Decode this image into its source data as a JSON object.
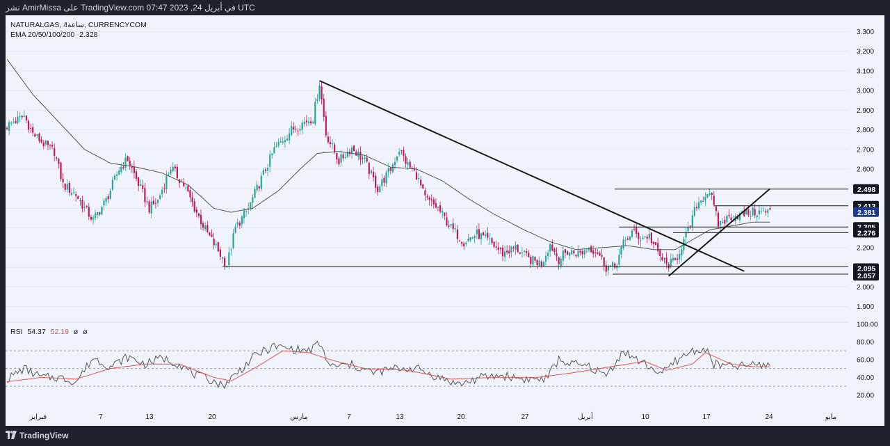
{
  "header": {
    "text": "نشر AmirMissa على TradingView.com 07:47 2023 ,24 في أبريل UTC"
  },
  "footer": {
    "brand": "TradingView",
    "icon": "tradingview-logo-icon"
  },
  "colors": {
    "background": "#f0f3fa",
    "up": "#26a69a",
    "down": "#c2185b",
    "ema": "#555555",
    "trendline": "#1a1a1a",
    "rsi": "#555555",
    "rsi_ma": "#e05555",
    "badge": "#131722",
    "badge_last": "#1e3a8a"
  },
  "chart_data": [
    {
      "type": "candlestick",
      "title": "NATURALGAS, 4ساعة, CURRENCYCOM",
      "indicator_label": "EMA 20/50/100/200",
      "indicator_value": "2.328",
      "ylim": [
        1.87,
        3.33
      ],
      "y_ticks": [
        "3.300",
        "3.200",
        "3.100",
        "3.000",
        "2.900",
        "2.800",
        "2.700",
        "2.600",
        "2.500",
        "2.400",
        "2.300",
        "2.200",
        "2.100",
        "2.000",
        "1.900"
      ],
      "x_ticks": [
        "فبراير",
        "7",
        "13",
        "20",
        "مارس",
        "7",
        "13",
        "20",
        "27",
        "أبريل",
        "10",
        "17",
        "24",
        "مايو"
      ],
      "price_badges": [
        {
          "label": "2.498",
          "value": 2.498
        },
        {
          "label": "2.413",
          "value": 2.413
        },
        {
          "label": "2.381",
          "value": 2.381,
          "last": true
        },
        {
          "label": "2.305",
          "value": 2.305
        },
        {
          "label": "2.276",
          "value": 2.276
        },
        {
          "label": "2.095",
          "value": 2.095
        },
        {
          "label": "2.057",
          "value": 2.057
        }
      ],
      "anchors": [
        [
          0,
          2.82
        ],
        [
          8,
          2.87
        ],
        [
          12,
          2.78
        ],
        [
          18,
          2.72
        ],
        [
          22,
          2.69
        ],
        [
          26,
          2.52
        ],
        [
          32,
          2.47
        ],
        [
          36,
          2.4
        ],
        [
          40,
          2.34
        ],
        [
          46,
          2.44
        ],
        [
          52,
          2.6
        ],
        [
          56,
          2.65
        ],
        [
          60,
          2.55
        ],
        [
          66,
          2.4
        ],
        [
          70,
          2.44
        ],
        [
          76,
          2.61
        ],
        [
          82,
          2.52
        ],
        [
          88,
          2.38
        ],
        [
          92,
          2.29
        ],
        [
          96,
          2.22
        ],
        [
          102,
          2.11
        ],
        [
          106,
          2.3
        ],
        [
          112,
          2.4
        ],
        [
          118,
          2.55
        ],
        [
          124,
          2.7
        ],
        [
          132,
          2.8
        ],
        [
          138,
          2.84
        ],
        [
          142,
          2.86
        ],
        [
          145,
          3.04
        ],
        [
          148,
          2.78
        ],
        [
          154,
          2.64
        ],
        [
          160,
          2.71
        ],
        [
          166,
          2.64
        ],
        [
          172,
          2.5
        ],
        [
          178,
          2.6
        ],
        [
          182,
          2.7
        ],
        [
          186,
          2.62
        ],
        [
          190,
          2.57
        ],
        [
          194,
          2.45
        ],
        [
          200,
          2.4
        ],
        [
          206,
          2.3
        ],
        [
          212,
          2.23
        ],
        [
          218,
          2.27
        ],
        [
          224,
          2.23
        ],
        [
          230,
          2.17
        ],
        [
          236,
          2.2
        ],
        [
          242,
          2.14
        ],
        [
          248,
          2.12
        ],
        [
          252,
          2.22
        ],
        [
          256,
          2.14
        ],
        [
          260,
          2.18
        ],
        [
          266,
          2.17
        ],
        [
          270,
          2.2
        ],
        [
          274,
          2.18
        ],
        [
          278,
          2.1
        ],
        [
          282,
          2.1
        ],
        [
          286,
          2.22
        ],
        [
          290,
          2.28
        ],
        [
          294,
          2.25
        ],
        [
          298,
          2.26
        ],
        [
          302,
          2.17
        ],
        [
          306,
          2.11
        ],
        [
          310,
          2.13
        ],
        [
          313,
          2.21
        ],
        [
          316,
          2.28
        ],
        [
          320,
          2.42
        ],
        [
          326,
          2.49
        ],
        [
          330,
          2.32
        ],
        [
          336,
          2.36
        ],
        [
          342,
          2.37
        ],
        [
          346,
          2.38
        ]
      ],
      "ema": [
        [
          0,
          3.16
        ],
        [
          12,
          2.98
        ],
        [
          24,
          2.84
        ],
        [
          36,
          2.7
        ],
        [
          48,
          2.63
        ],
        [
          60,
          2.61
        ],
        [
          72,
          2.58
        ],
        [
          84,
          2.52
        ],
        [
          96,
          2.4
        ],
        [
          104,
          2.38
        ],
        [
          114,
          2.4
        ],
        [
          126,
          2.49
        ],
        [
          136,
          2.6
        ],
        [
          144,
          2.68
        ],
        [
          154,
          2.69
        ],
        [
          166,
          2.67
        ],
        [
          178,
          2.61
        ],
        [
          190,
          2.6
        ],
        [
          202,
          2.54
        ],
        [
          214,
          2.45
        ],
        [
          226,
          2.37
        ],
        [
          240,
          2.29
        ],
        [
          252,
          2.23
        ],
        [
          264,
          2.19
        ],
        [
          276,
          2.2
        ],
        [
          288,
          2.21
        ],
        [
          300,
          2.19
        ],
        [
          310,
          2.19
        ],
        [
          318,
          2.24
        ],
        [
          326,
          2.29
        ],
        [
          336,
          2.31
        ],
        [
          346,
          2.33
        ]
      ],
      "trendlines": [
        {
          "from": [
            145,
            3.05
          ],
          "to": [
            342,
            2.08
          ]
        },
        {
          "from": [
            307,
            2.055
          ],
          "to": [
            354,
            2.5
          ]
        }
      ],
      "hlines": [
        {
          "value": 2.105,
          "from": 100,
          "to": 357
        },
        {
          "value": 2.065,
          "from": 281,
          "to": 357
        },
        {
          "value": 2.498,
          "from": 282,
          "to": 357
        },
        {
          "value": 2.413,
          "from": 328,
          "to": 357
        },
        {
          "value": 2.305,
          "from": 284,
          "to": 357
        },
        {
          "value": 2.276,
          "from": 309,
          "to": 357
        }
      ]
    },
    {
      "type": "line",
      "title": "RSI",
      "value": "54.37",
      "ma_value": "52.19",
      "extra": [
        "ø",
        "ø"
      ],
      "ylim": [
        12,
        100
      ],
      "y_ticks": [
        "100.00",
        "80.00",
        "60.00",
        "40.00",
        "20.00"
      ],
      "bands": [
        70,
        50,
        30
      ],
      "anchors": [
        [
          0,
          38
        ],
        [
          8,
          50
        ],
        [
          16,
          40
        ],
        [
          24,
          40
        ],
        [
          32,
          35
        ],
        [
          40,
          62
        ],
        [
          48,
          52
        ],
        [
          56,
          63
        ],
        [
          64,
          55
        ],
        [
          72,
          62
        ],
        [
          80,
          55
        ],
        [
          88,
          42
        ],
        [
          96,
          36
        ],
        [
          100,
          30
        ],
        [
          108,
          48
        ],
        [
          116,
          66
        ],
        [
          124,
          75
        ],
        [
          132,
          72
        ],
        [
          140,
          70
        ],
        [
          145,
          78
        ],
        [
          150,
          52
        ],
        [
          160,
          54
        ],
        [
          170,
          45
        ],
        [
          180,
          50
        ],
        [
          190,
          50
        ],
        [
          200,
          40
        ],
        [
          210,
          32
        ],
        [
          220,
          40
        ],
        [
          230,
          42
        ],
        [
          240,
          38
        ],
        [
          250,
          38
        ],
        [
          256,
          60
        ],
        [
          262,
          55
        ],
        [
          270,
          52
        ],
        [
          278,
          42
        ],
        [
          286,
          70
        ],
        [
          292,
          60
        ],
        [
          298,
          52
        ],
        [
          304,
          44
        ],
        [
          310,
          58
        ],
        [
          318,
          70
        ],
        [
          324,
          72
        ],
        [
          328,
          55
        ],
        [
          336,
          52
        ],
        [
          346,
          54
        ]
      ],
      "ma_anchors": [
        [
          0,
          35
        ],
        [
          16,
          40
        ],
        [
          32,
          38
        ],
        [
          48,
          50
        ],
        [
          64,
          55
        ],
        [
          80,
          55
        ],
        [
          96,
          40
        ],
        [
          104,
          36
        ],
        [
          116,
          52
        ],
        [
          128,
          70
        ],
        [
          140,
          68
        ],
        [
          150,
          60
        ],
        [
          166,
          50
        ],
        [
          186,
          48
        ],
        [
          206,
          38
        ],
        [
          226,
          40
        ],
        [
          246,
          40
        ],
        [
          262,
          45
        ],
        [
          280,
          52
        ],
        [
          296,
          58
        ],
        [
          306,
          48
        ],
        [
          318,
          55
        ],
        [
          324,
          68
        ],
        [
          336,
          55
        ],
        [
          346,
          52
        ]
      ]
    }
  ]
}
